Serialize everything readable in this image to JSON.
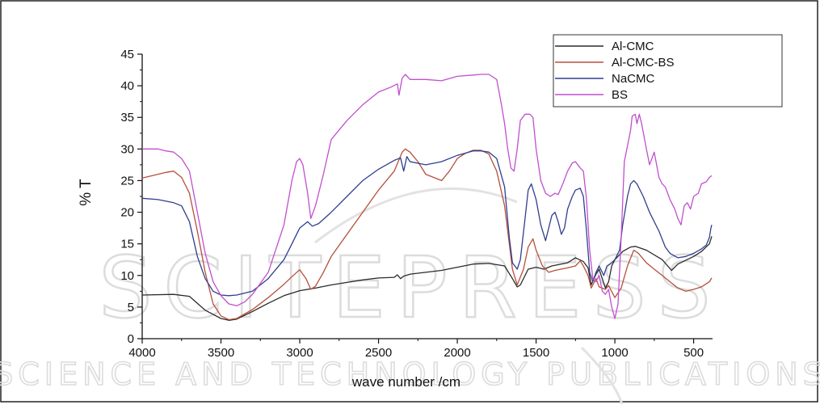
{
  "watermark": {
    "main": "SCITEPRESS",
    "sub": "SCIENCE AND TECHNOLOGY PUBLICATIONS"
  },
  "chart_data": {
    "type": "line",
    "title": "",
    "xlabel": "wave number /cm",
    "ylabel": "% T",
    "xlim": [
      4000,
      380
    ],
    "ylim": [
      0,
      45
    ],
    "x_reversed": true,
    "x_ticks": [
      4000,
      3500,
      3000,
      2500,
      2000,
      1500,
      1000,
      500
    ],
    "y_ticks": [
      0,
      5,
      10,
      15,
      20,
      25,
      30,
      35,
      40,
      45
    ],
    "grid": false,
    "legend_position": "top-right",
    "series": [
      {
        "name": "Al-CMC",
        "color": "#2b2b2b",
        "points": [
          [
            4000,
            6.9
          ],
          [
            3800,
            7.0
          ],
          [
            3700,
            6.7
          ],
          [
            3600,
            4.5
          ],
          [
            3500,
            3.2
          ],
          [
            3450,
            2.9
          ],
          [
            3400,
            3.1
          ],
          [
            3300,
            4.3
          ],
          [
            3200,
            5.6
          ],
          [
            3100,
            6.8
          ],
          [
            3000,
            7.6
          ],
          [
            2900,
            8.0
          ],
          [
            2800,
            8.5
          ],
          [
            2700,
            8.9
          ],
          [
            2600,
            9.3
          ],
          [
            2500,
            9.6
          ],
          [
            2400,
            9.7
          ],
          [
            2380,
            10.1
          ],
          [
            2360,
            9.5
          ],
          [
            2340,
            9.9
          ],
          [
            2300,
            10.2
          ],
          [
            2200,
            10.5
          ],
          [
            2100,
            10.8
          ],
          [
            2000,
            11.3
          ],
          [
            1900,
            11.8
          ],
          [
            1800,
            11.9
          ],
          [
            1700,
            11.5
          ],
          [
            1650,
            9.5
          ],
          [
            1620,
            8.2
          ],
          [
            1600,
            8.5
          ],
          [
            1550,
            11.0
          ],
          [
            1500,
            11.3
          ],
          [
            1450,
            11.0
          ],
          [
            1400,
            11.5
          ],
          [
            1300,
            12.0
          ],
          [
            1250,
            12.8
          ],
          [
            1200,
            12.2
          ],
          [
            1170,
            11.2
          ],
          [
            1150,
            8.5
          ],
          [
            1120,
            10.2
          ],
          [
            1100,
            11.0
          ],
          [
            1060,
            8.0
          ],
          [
            1040,
            9.0
          ],
          [
            1020,
            11.5
          ],
          [
            1000,
            12.5
          ],
          [
            950,
            13.8
          ],
          [
            900,
            14.5
          ],
          [
            870,
            14.6
          ],
          [
            800,
            14.0
          ],
          [
            700,
            12.5
          ],
          [
            640,
            10.8
          ],
          [
            600,
            11.8
          ],
          [
            500,
            13.0
          ],
          [
            450,
            13.8
          ],
          [
            400,
            15.0
          ],
          [
            385,
            16.2
          ]
        ]
      },
      {
        "name": "Al-CMC-BS",
        "color": "#b5503a",
        "points": [
          [
            4000,
            25.4
          ],
          [
            3900,
            26.0
          ],
          [
            3850,
            26.3
          ],
          [
            3800,
            26.5
          ],
          [
            3750,
            25.5
          ],
          [
            3700,
            23.0
          ],
          [
            3650,
            17.0
          ],
          [
            3600,
            10.5
          ],
          [
            3550,
            5.5
          ],
          [
            3500,
            3.6
          ],
          [
            3450,
            3.0
          ],
          [
            3400,
            3.2
          ],
          [
            3300,
            4.6
          ],
          [
            3200,
            6.5
          ],
          [
            3100,
            8.6
          ],
          [
            3050,
            9.8
          ],
          [
            3000,
            10.9
          ],
          [
            2960,
            9.5
          ],
          [
            2930,
            7.8
          ],
          [
            2900,
            8.3
          ],
          [
            2850,
            10.5
          ],
          [
            2800,
            13.0
          ],
          [
            2700,
            16.5
          ],
          [
            2600,
            20.0
          ],
          [
            2500,
            23.5
          ],
          [
            2400,
            26.5
          ],
          [
            2350,
            29.5
          ],
          [
            2330,
            30.0
          ],
          [
            2300,
            29.5
          ],
          [
            2250,
            28.0
          ],
          [
            2200,
            26.0
          ],
          [
            2150,
            25.5
          ],
          [
            2100,
            25.0
          ],
          [
            2050,
            26.5
          ],
          [
            2000,
            28.5
          ],
          [
            1950,
            29.3
          ],
          [
            1900,
            29.8
          ],
          [
            1850,
            29.8
          ],
          [
            1800,
            29.2
          ],
          [
            1750,
            26.5
          ],
          [
            1700,
            21.0
          ],
          [
            1650,
            11.0
          ],
          [
            1620,
            8.5
          ],
          [
            1580,
            11.0
          ],
          [
            1550,
            14.5
          ],
          [
            1520,
            15.8
          ],
          [
            1500,
            14.0
          ],
          [
            1460,
            11.5
          ],
          [
            1420,
            10.5
          ],
          [
            1380,
            10.8
          ],
          [
            1300,
            11.2
          ],
          [
            1250,
            11.5
          ],
          [
            1220,
            12.3
          ],
          [
            1200,
            11.5
          ],
          [
            1170,
            10.0
          ],
          [
            1150,
            8.0
          ],
          [
            1120,
            9.5
          ],
          [
            1100,
            8.2
          ],
          [
            1060,
            7.8
          ],
          [
            1040,
            8.4
          ],
          [
            1000,
            6.5
          ],
          [
            960,
            8.0
          ],
          [
            920,
            11.5
          ],
          [
            880,
            14.0
          ],
          [
            850,
            13.5
          ],
          [
            800,
            12.0
          ],
          [
            750,
            11.0
          ],
          [
            700,
            10.0
          ],
          [
            650,
            9.0
          ],
          [
            600,
            8.0
          ],
          [
            550,
            7.5
          ],
          [
            500,
            7.8
          ],
          [
            450,
            8.2
          ],
          [
            400,
            9.0
          ],
          [
            385,
            9.6
          ]
        ]
      },
      {
        "name": "NaCMC",
        "color": "#2f3f8f",
        "points": [
          [
            4000,
            22.2
          ],
          [
            3900,
            22.0
          ],
          [
            3800,
            21.5
          ],
          [
            3750,
            21.0
          ],
          [
            3700,
            18.5
          ],
          [
            3650,
            13.0
          ],
          [
            3600,
            9.5
          ],
          [
            3550,
            7.5
          ],
          [
            3500,
            6.9
          ],
          [
            3450,
            6.8
          ],
          [
            3400,
            6.9
          ],
          [
            3300,
            7.5
          ],
          [
            3200,
            9.5
          ],
          [
            3100,
            12.5
          ],
          [
            3050,
            15.0
          ],
          [
            3000,
            17.5
          ],
          [
            2950,
            18.5
          ],
          [
            2920,
            17.8
          ],
          [
            2880,
            18.2
          ],
          [
            2800,
            20.0
          ],
          [
            2700,
            22.5
          ],
          [
            2600,
            25.0
          ],
          [
            2500,
            26.8
          ],
          [
            2400,
            28.2
          ],
          [
            2360,
            28.6
          ],
          [
            2340,
            26.5
          ],
          [
            2320,
            28.8
          ],
          [
            2300,
            28.0
          ],
          [
            2200,
            27.5
          ],
          [
            2100,
            28.0
          ],
          [
            2000,
            29.0
          ],
          [
            1900,
            29.7
          ],
          [
            1850,
            29.7
          ],
          [
            1800,
            29.5
          ],
          [
            1750,
            28.5
          ],
          [
            1700,
            24.0
          ],
          [
            1670,
            16.0
          ],
          [
            1650,
            12.0
          ],
          [
            1620,
            11.0
          ],
          [
            1600,
            12.5
          ],
          [
            1570,
            19.0
          ],
          [
            1550,
            23.5
          ],
          [
            1530,
            24.5
          ],
          [
            1500,
            22.0
          ],
          [
            1470,
            18.0
          ],
          [
            1440,
            15.5
          ],
          [
            1420,
            17.5
          ],
          [
            1400,
            19.5
          ],
          [
            1380,
            20.0
          ],
          [
            1360,
            18.5
          ],
          [
            1340,
            16.5
          ],
          [
            1320,
            17.5
          ],
          [
            1300,
            20.5
          ],
          [
            1270,
            22.5
          ],
          [
            1250,
            23.5
          ],
          [
            1220,
            23.8
          ],
          [
            1200,
            22.5
          ],
          [
            1180,
            17.0
          ],
          [
            1160,
            10.5
          ],
          [
            1140,
            9.0
          ],
          [
            1120,
            10.5
          ],
          [
            1100,
            11.5
          ],
          [
            1070,
            10.0
          ],
          [
            1050,
            11.5
          ],
          [
            1030,
            11.8
          ],
          [
            1000,
            12.5
          ],
          [
            970,
            14.0
          ],
          [
            950,
            18.0
          ],
          [
            920,
            22.5
          ],
          [
            900,
            24.5
          ],
          [
            880,
            25.0
          ],
          [
            860,
            24.5
          ],
          [
            820,
            22.5
          ],
          [
            780,
            20.0
          ],
          [
            720,
            17.0
          ],
          [
            680,
            14.5
          ],
          [
            650,
            13.5
          ],
          [
            600,
            12.8
          ],
          [
            550,
            13.0
          ],
          [
            500,
            13.5
          ],
          [
            450,
            14.2
          ],
          [
            420,
            14.8
          ],
          [
            400,
            16.0
          ],
          [
            390,
            17.5
          ],
          [
            385,
            18.0
          ]
        ]
      },
      {
        "name": "BS",
        "color": "#c14fcf",
        "points": [
          [
            4000,
            30.0
          ],
          [
            3900,
            30.0
          ],
          [
            3850,
            29.7
          ],
          [
            3800,
            29.5
          ],
          [
            3750,
            28.5
          ],
          [
            3700,
            26.5
          ],
          [
            3650,
            20.0
          ],
          [
            3600,
            13.5
          ],
          [
            3550,
            9.0
          ],
          [
            3500,
            6.8
          ],
          [
            3450,
            5.5
          ],
          [
            3400,
            5.2
          ],
          [
            3350,
            5.8
          ],
          [
            3300,
            7.0
          ],
          [
            3200,
            10.5
          ],
          [
            3100,
            18.0
          ],
          [
            3050,
            25.0
          ],
          [
            3020,
            28.0
          ],
          [
            3000,
            28.5
          ],
          [
            2980,
            27.5
          ],
          [
            2950,
            23.0
          ],
          [
            2930,
            19.0
          ],
          [
            2900,
            21.0
          ],
          [
            2850,
            26.0
          ],
          [
            2800,
            31.5
          ],
          [
            2700,
            34.5
          ],
          [
            2600,
            37.0
          ],
          [
            2500,
            39.0
          ],
          [
            2420,
            39.8
          ],
          [
            2380,
            40.3
          ],
          [
            2370,
            38.5
          ],
          [
            2350,
            41.2
          ],
          [
            2330,
            41.8
          ],
          [
            2300,
            41.0
          ],
          [
            2200,
            41.0
          ],
          [
            2100,
            40.8
          ],
          [
            2000,
            41.5
          ],
          [
            1900,
            41.7
          ],
          [
            1850,
            41.8
          ],
          [
            1800,
            41.8
          ],
          [
            1750,
            41.0
          ],
          [
            1720,
            37.0
          ],
          [
            1700,
            34.0
          ],
          [
            1680,
            30.0
          ],
          [
            1660,
            27.0
          ],
          [
            1640,
            26.5
          ],
          [
            1620,
            30.0
          ],
          [
            1600,
            34.5
          ],
          [
            1570,
            35.5
          ],
          [
            1540,
            35.5
          ],
          [
            1520,
            35.0
          ],
          [
            1500,
            30.0
          ],
          [
            1470,
            25.0
          ],
          [
            1440,
            23.0
          ],
          [
            1410,
            22.5
          ],
          [
            1380,
            23.0
          ],
          [
            1360,
            22.8
          ],
          [
            1330,
            24.5
          ],
          [
            1300,
            26.5
          ],
          [
            1270,
            27.8
          ],
          [
            1250,
            28.0
          ],
          [
            1220,
            27.0
          ],
          [
            1200,
            26.5
          ],
          [
            1180,
            22.0
          ],
          [
            1160,
            14.0
          ],
          [
            1140,
            9.5
          ],
          [
            1120,
            9.0
          ],
          [
            1100,
            10.0
          ],
          [
            1080,
            7.5
          ],
          [
            1060,
            7.0
          ],
          [
            1040,
            7.8
          ],
          [
            1020,
            5.0
          ],
          [
            1000,
            3.2
          ],
          [
            980,
            5.5
          ],
          [
            960,
            16.0
          ],
          [
            940,
            28.0
          ],
          [
            920,
            30.5
          ],
          [
            900,
            33.0
          ],
          [
            890,
            35.2
          ],
          [
            870,
            35.5
          ],
          [
            860,
            34.0
          ],
          [
            845,
            35.5
          ],
          [
            830,
            34.0
          ],
          [
            800,
            30.0
          ],
          [
            780,
            27.5
          ],
          [
            750,
            29.5
          ],
          [
            720,
            25.5
          ],
          [
            700,
            24.5
          ],
          [
            680,
            24.0
          ],
          [
            650,
            22.0
          ],
          [
            620,
            20.5
          ],
          [
            600,
            19.0
          ],
          [
            580,
            18.0
          ],
          [
            560,
            21.0
          ],
          [
            540,
            21.5
          ],
          [
            520,
            20.5
          ],
          [
            500,
            22.5
          ],
          [
            470,
            23.0
          ],
          [
            450,
            24.5
          ],
          [
            420,
            24.8
          ],
          [
            400,
            25.5
          ],
          [
            385,
            25.8
          ]
        ]
      }
    ]
  }
}
